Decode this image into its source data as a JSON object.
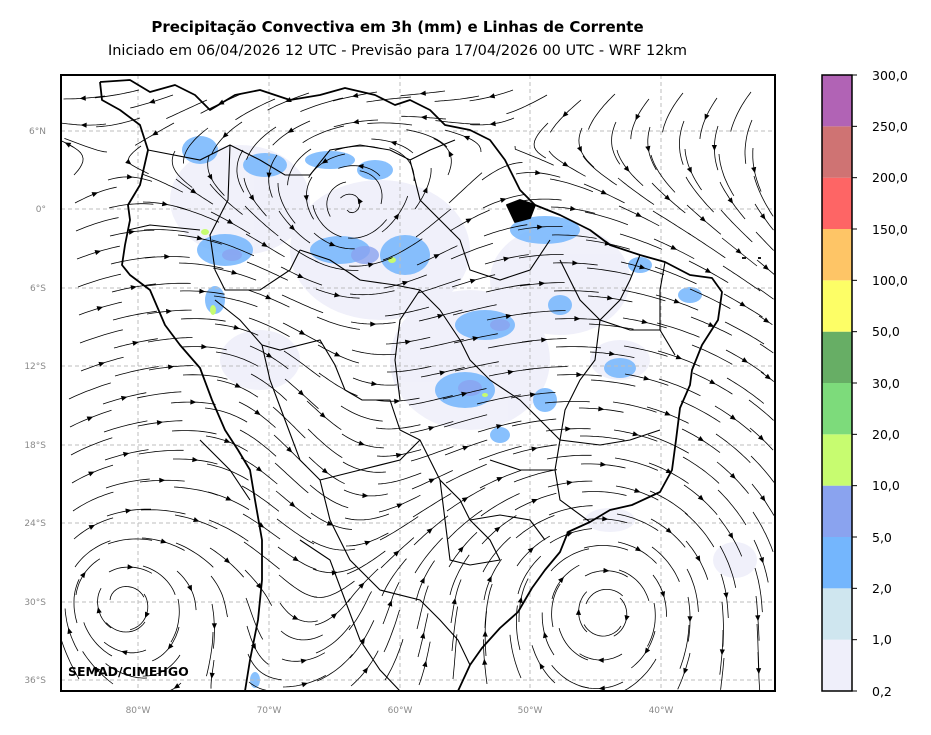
{
  "title": "Precipitação Convectiva em 3h (mm) e Linhas de Corrente",
  "subtitle": "Iniciado em 06/04/2026 12 UTC - Previsão para 17/04/2026 00 UTC - WRF 12km",
  "credit": "SEMAD/CIMEHGO",
  "lat_ticks": [
    "6°N",
    "0°",
    "6°S",
    "12°S",
    "18°S",
    "24°S",
    "30°S",
    "36°S"
  ],
  "lon_ticks": [
    "80°W",
    "70°W",
    "60°W",
    "50°W",
    "40°W"
  ],
  "colorbar": {
    "labels": [
      "0,2",
      "1,0",
      "2,0",
      "5,0",
      "10,0",
      "20,0",
      "30,0",
      "50,0",
      "100,0",
      "150,0",
      "200,0",
      "250,0",
      "300,0"
    ],
    "colors": [
      "#efeffa",
      "#cfe6ef",
      "#74b6fd",
      "#8aa3ef",
      "#c7fc70",
      "#7ddb7b",
      "#67ae65",
      "#fdfe66",
      "#fec566",
      "#fe6565",
      "#cf7373",
      "#b163b5"
    ]
  }
}
